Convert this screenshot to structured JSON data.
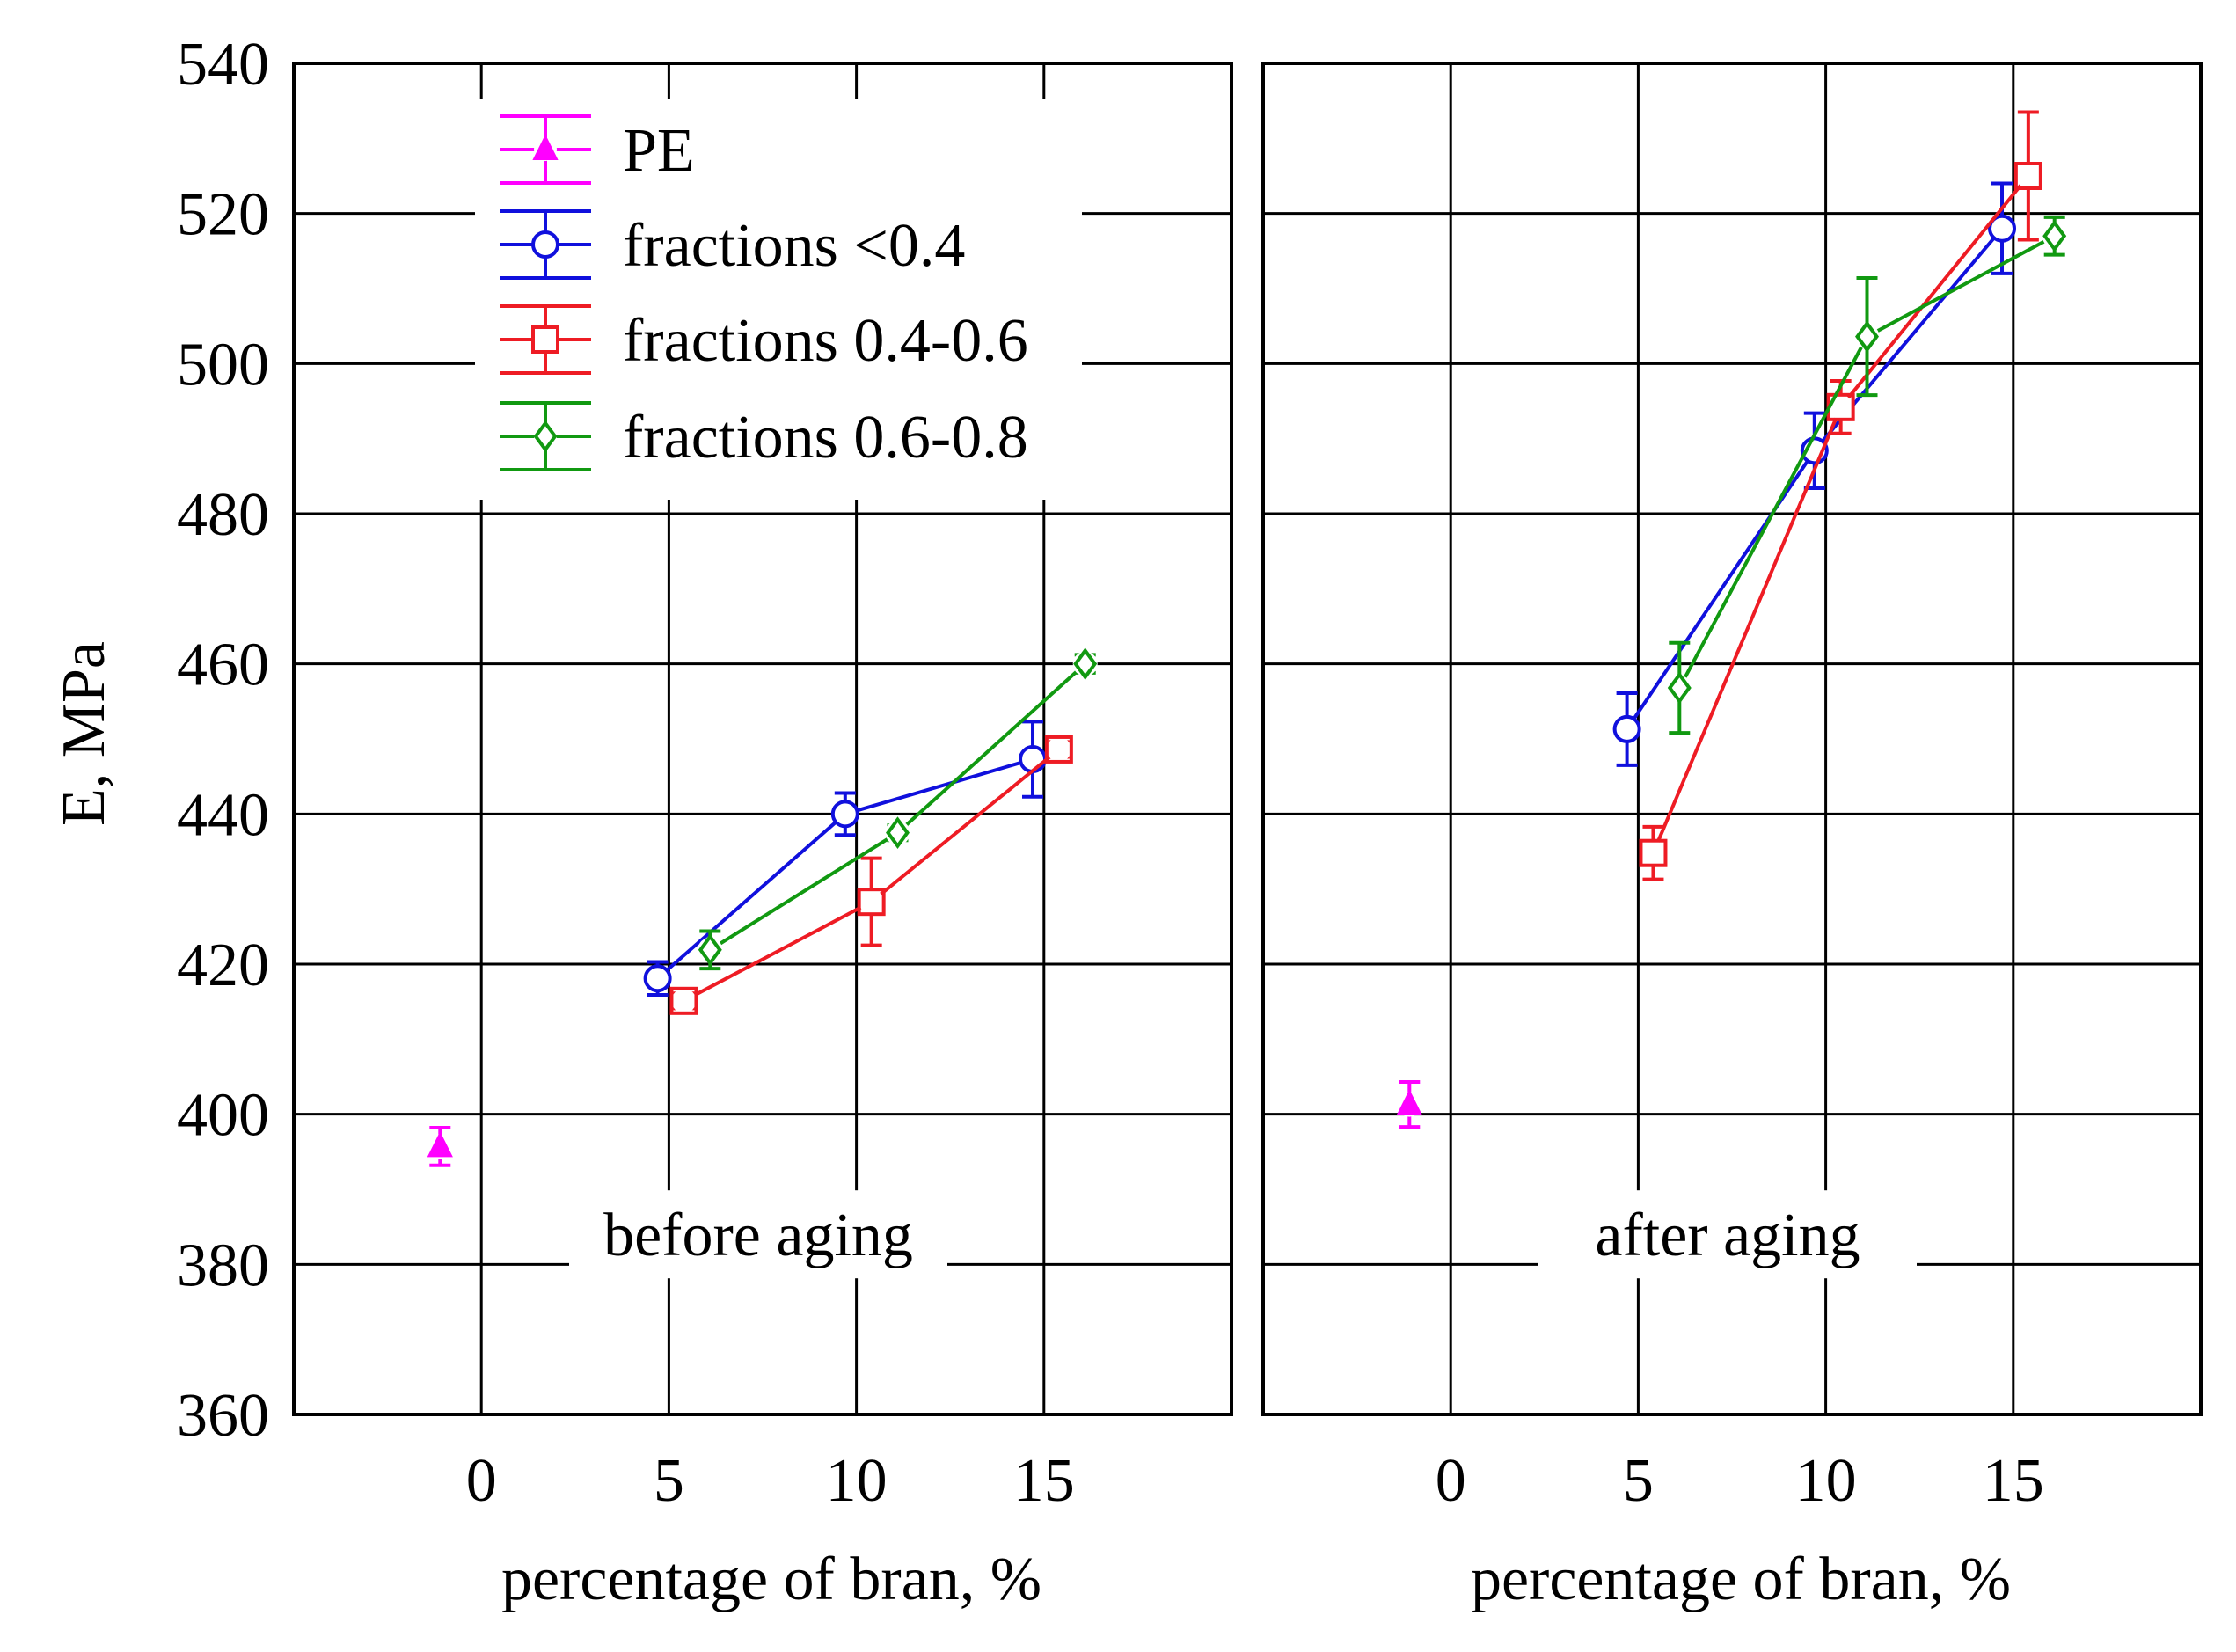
{
  "chart_data": {
    "type": "line",
    "ylabel": "E, MPa",
    "ylim": [
      360,
      540
    ],
    "yticks": [
      360,
      380,
      400,
      420,
      440,
      460,
      480,
      500,
      520,
      540
    ],
    "xlim": [
      -5,
      20
    ],
    "xticks": [
      0,
      5,
      10,
      15
    ],
    "grid": true,
    "legend": {
      "placement": "top-left of first panel",
      "entries": [
        "PE",
        "fractions  <0.4",
        "fractions 0.4-0.6",
        "fractions 0.6-0.8"
      ]
    },
    "series_styles": [
      {
        "name": "PE",
        "color": "#ff00ff",
        "marker": "triangle"
      },
      {
        "name": "fractions  <0.4",
        "color": "#1010dd",
        "marker": "circle"
      },
      {
        "name": "fractions 0.4-0.6",
        "color": "#ee1c24",
        "marker": "square"
      },
      {
        "name": "fractions 0.6-0.8",
        "color": "#119911",
        "marker": "diamond"
      }
    ],
    "panels": [
      {
        "label": "before aging",
        "xlabel": "percentage of bran, %",
        "series": [
          {
            "name": "PE",
            "points": [
              {
                "x": -1.1,
                "y": 395.7,
                "err": 2.5
              }
            ],
            "connect": false
          },
          {
            "name": "fractions  <0.4",
            "points": [
              {
                "x": 4.7,
                "y": 418.1,
                "err": 2.2
              },
              {
                "x": 9.7,
                "y": 440.0,
                "err": 2.8
              },
              {
                "x": 14.7,
                "y": 447.3,
                "err": 5.0
              }
            ],
            "connect": true
          },
          {
            "name": "fractions 0.4-0.6",
            "points": [
              {
                "x": 5.4,
                "y": 415.1,
                "err": 1.0
              },
              {
                "x": 10.4,
                "y": 428.3,
                "err": 5.8
              },
              {
                "x": 15.4,
                "y": 448.6,
                "err": 1.0
              }
            ],
            "connect": true
          },
          {
            "name": "fractions 0.6-0.8",
            "points": [
              {
                "x": 6.1,
                "y": 421.9,
                "err": 2.5
              },
              {
                "x": 11.1,
                "y": 437.5,
                "err": 1.0
              },
              {
                "x": 16.1,
                "y": 460.0,
                "err": 1.2
              }
            ],
            "connect": true
          }
        ]
      },
      {
        "label": "after aging",
        "xlabel": "percentage of bran, %",
        "series": [
          {
            "name": "PE",
            "points": [
              {
                "x": -1.1,
                "y": 401.3,
                "err": 3.0
              }
            ],
            "connect": false
          },
          {
            "name": "fractions  <0.4",
            "points": [
              {
                "x": 4.7,
                "y": 451.3,
                "err": 4.8
              },
              {
                "x": 9.7,
                "y": 488.4,
                "err": 5.0
              },
              {
                "x": 14.7,
                "y": 518.0,
                "err": 6.0
              }
            ],
            "connect": true
          },
          {
            "name": "fractions 0.4-0.6",
            "points": [
              {
                "x": 5.4,
                "y": 434.8,
                "err": 3.5
              },
              {
                "x": 10.4,
                "y": 494.2,
                "err": 3.5
              },
              {
                "x": 15.4,
                "y": 525.0,
                "err": 8.5
              }
            ],
            "connect": true
          },
          {
            "name": "fractions 0.6-0.8",
            "points": [
              {
                "x": 6.1,
                "y": 456.8,
                "err": 6.0
              },
              {
                "x": 11.1,
                "y": 503.6,
                "err": 7.8
              },
              {
                "x": 16.1,
                "y": 517.0,
                "err": 2.5
              }
            ],
            "connect": true
          }
        ]
      }
    ]
  }
}
